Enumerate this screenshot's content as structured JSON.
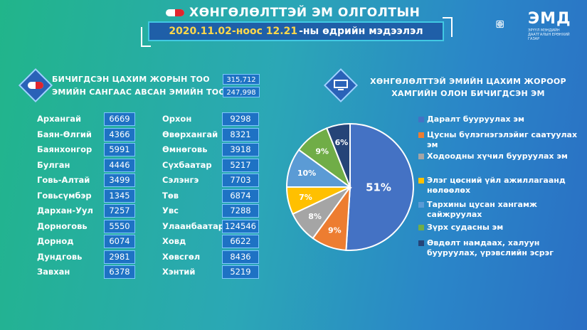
{
  "header": {
    "title": "ХӨНГӨЛӨЛТТЭЙ ЭМ ОЛГОЛТЫН",
    "date": "2020.11.02-ноос 12.21",
    "date_rest": "-ны өдрийн мэдээлэл"
  },
  "logo": {
    "name": "ЭМД",
    "sub": "ЭРҮҮЛ МЭНДИЙН ДААТГАЛЫН ЕРӨНХИЙ ГАЗАР"
  },
  "stats": [
    {
      "label": "БИЧИГДСЭН ЦАХИМ ЖОРЫН ТОО",
      "value": "315,712"
    },
    {
      "label": "ЭМИЙН САНГААС АВСАН ЭМИЙН ТОО",
      "value": "247,998"
    }
  ],
  "regions_left": [
    {
      "name": "Архангай",
      "value": "6669"
    },
    {
      "name": "Баян-Өлгий",
      "value": "4366"
    },
    {
      "name": "Баянхонгор",
      "value": "5991"
    },
    {
      "name": "Булган",
      "value": "4446"
    },
    {
      "name": "Говь-Алтай",
      "value": "3499"
    },
    {
      "name": "Говьсүмбэр",
      "value": "1345"
    },
    {
      "name": "Дархан-Уул",
      "value": "7257"
    },
    {
      "name": "Дорноговь",
      "value": "5550"
    },
    {
      "name": "Дорнод",
      "value": "6074"
    },
    {
      "name": "Дундговь",
      "value": "2981"
    },
    {
      "name": "Завхан",
      "value": "6378"
    }
  ],
  "regions_right": [
    {
      "name": "Орхон",
      "value": "9298"
    },
    {
      "name": "Өвөрхангай",
      "value": "8321"
    },
    {
      "name": "Өмнөговь",
      "value": "3918"
    },
    {
      "name": "Сүхбаатар",
      "value": "5217"
    },
    {
      "name": "Сэлэнгэ",
      "value": "7703"
    },
    {
      "name": "Төв",
      "value": "6874"
    },
    {
      "name": "Увс",
      "value": "7288"
    },
    {
      "name": "Улаанбаатар",
      "value": "124546"
    },
    {
      "name": "Ховд",
      "value": "6622"
    },
    {
      "name": "Хөвсгөл",
      "value": "8436"
    },
    {
      "name": "Хэнтий",
      "value": "5219"
    }
  ],
  "chart_data": {
    "type": "pie",
    "title": "ХӨНГӨЛӨЛТТЭЙ ЭМИЙН ЦАХИМ ЖОРООР ХАМГИЙН ОЛОН БИЧИГДСЭН ЭМ",
    "legend_position": "right",
    "slices": [
      {
        "label": "Даралт бууруулах эм",
        "value": 51,
        "display": "51%",
        "color": "#4472c4"
      },
      {
        "label": "Цусны бүлэгнэгэлэйиг саатуулах эм",
        "value": 9,
        "display": "9%",
        "color": "#ed7d31"
      },
      {
        "label": "Ходоодны хүчил бууруулах эм",
        "value": 8,
        "display": "8%",
        "color": "#a5a5a5"
      },
      {
        "label": "Элэг цөсний үйл ажиллагаанд нөлөөлөх",
        "value": 7,
        "display": "7%",
        "color": "#ffc000"
      },
      {
        "label": "Тархины цусан хангамж сайжруулах",
        "value": 10,
        "display": "10%",
        "color": "#5b9bd5"
      },
      {
        "label": "Зүрх судасны эм",
        "value": 9,
        "display": "9%",
        "color": "#70ad47"
      },
      {
        "label": "Өвдөлт намдаах, халуун бууруулах, үрэвслийн эсрэг",
        "value": 6,
        "display": "6%",
        "color": "#264478"
      }
    ]
  }
}
